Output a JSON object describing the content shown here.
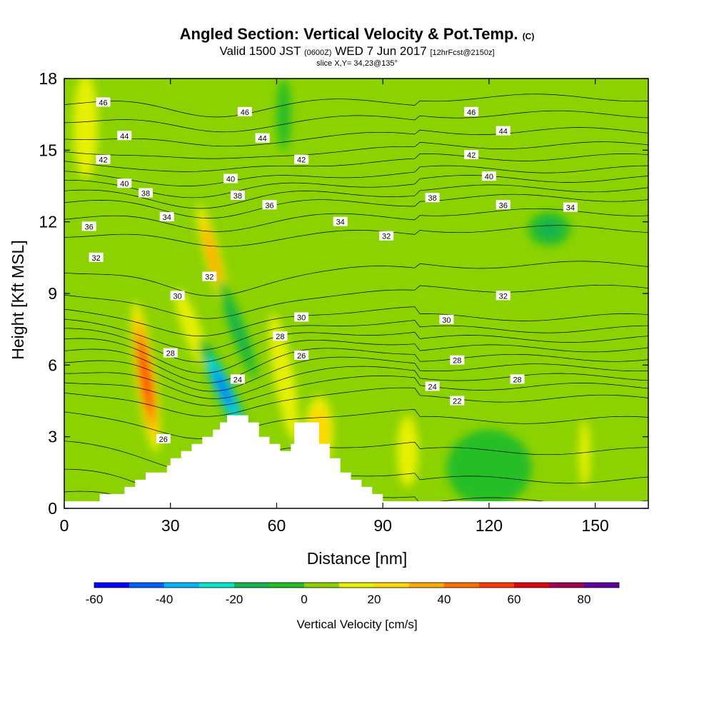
{
  "title": {
    "main": "Angled Section: Vertical Velocity & Pot.Temp.",
    "main_unit": "(C)",
    "valid_a": "Valid 1500 JST",
    "valid_z": "(0600Z)",
    "valid_b": "WED 7 Jun 2017",
    "valid_fcst": "[12hrFcst@2150z]",
    "slice": "slice X,Y= 34,23@135°"
  },
  "chart_data": {
    "type": "heatmap",
    "xlabel": "Distance [nm]",
    "ylabel": "Height [Kft MSL]",
    "xlim": [
      0,
      165
    ],
    "ylim": [
      0,
      18
    ],
    "xticks": [
      0,
      30,
      60,
      90,
      120,
      150
    ],
    "yticks": [
      0,
      3,
      6,
      9,
      12,
      15,
      18
    ],
    "background_value": 5,
    "terrain": [
      [
        10,
        0.3
      ],
      [
        10,
        0.6
      ],
      [
        17,
        0.6
      ],
      [
        17,
        0.9
      ],
      [
        20,
        0.9
      ],
      [
        20,
        1.2
      ],
      [
        23,
        1.2
      ],
      [
        23,
        1.5
      ],
      [
        29,
        1.5
      ],
      [
        29,
        1.8
      ],
      [
        30,
        1.8
      ],
      [
        30,
        2.1
      ],
      [
        33,
        2.1
      ],
      [
        33,
        2.4
      ],
      [
        36,
        2.4
      ],
      [
        36,
        2.7
      ],
      [
        39,
        2.7
      ],
      [
        39,
        3.0
      ],
      [
        42,
        3.0
      ],
      [
        42,
        3.3
      ],
      [
        44,
        3.3
      ],
      [
        44,
        3.6
      ],
      [
        46,
        3.6
      ],
      [
        46,
        3.9
      ],
      [
        52,
        3.9
      ],
      [
        52,
        3.6
      ],
      [
        55,
        3.6
      ],
      [
        55,
        3.0
      ],
      [
        58,
        3.0
      ],
      [
        58,
        2.7
      ],
      [
        61,
        2.7
      ],
      [
        61,
        2.4
      ],
      [
        64,
        2.4
      ],
      [
        64,
        2.7
      ],
      [
        65,
        2.7
      ],
      [
        65,
        3.6
      ],
      [
        72,
        3.6
      ],
      [
        72,
        2.7
      ],
      [
        75,
        2.7
      ],
      [
        75,
        2.1
      ],
      [
        78,
        2.1
      ],
      [
        78,
        1.5
      ],
      [
        81,
        1.5
      ],
      [
        81,
        1.2
      ],
      [
        84,
        1.2
      ],
      [
        84,
        0.9
      ],
      [
        87,
        0.9
      ],
      [
        87,
        0.6
      ],
      [
        90,
        0.6
      ],
      [
        90,
        0.3
      ]
    ],
    "features": [
      {
        "name": "updraft-west",
        "cx": 23,
        "cy": 5.5,
        "rx": 2.8,
        "ry": 3.2,
        "angle": -8,
        "value": 52
      },
      {
        "name": "updraft-upper",
        "cx": 42,
        "cy": 10.5,
        "rx": 2.2,
        "ry": 2.3,
        "angle": -15,
        "value": 30
      },
      {
        "name": "updraft-mid",
        "cx": 36,
        "cy": 7.5,
        "rx": 2.5,
        "ry": 1.8,
        "angle": -20,
        "value": 18
      },
      {
        "name": "downdraft",
        "cx": 45,
        "cy": 5.0,
        "rx": 2.8,
        "ry": 2.3,
        "angle": -25,
        "value": -42
      },
      {
        "name": "downdraft-upper",
        "cx": 49,
        "cy": 7.5,
        "rx": 2.2,
        "ry": 2.2,
        "angle": -20,
        "value": -18
      },
      {
        "name": "updraft-east",
        "cx": 62,
        "cy": 5.5,
        "rx": 2.8,
        "ry": 2.7,
        "angle": -10,
        "value": 17
      },
      {
        "name": "updraft-lee",
        "cx": 72,
        "cy": 3.2,
        "rx": 4,
        "ry": 1.5,
        "angle": 0,
        "value": 20
      },
      {
        "name": "yellow-top-left",
        "cx": 6,
        "cy": 16.0,
        "rx": 3.5,
        "ry": 2.2,
        "angle": 0,
        "value": 12
      },
      {
        "name": "yellow-right",
        "cx": 97,
        "cy": 2.4,
        "rx": 3,
        "ry": 1.5,
        "angle": 0,
        "value": 14
      },
      {
        "name": "yellow-far-right",
        "cx": 147,
        "cy": 2.3,
        "rx": 1.6,
        "ry": 1.4,
        "angle": 0,
        "value": 12
      },
      {
        "name": "sink-right",
        "cx": 120,
        "cy": 1.7,
        "rx": 12,
        "ry": 1.6,
        "angle": 0,
        "value": -4
      },
      {
        "name": "sink-upper-right",
        "cx": 137,
        "cy": 11.7,
        "rx": 6,
        "ry": 0.7,
        "angle": 0,
        "value": -12
      },
      {
        "name": "sink-top",
        "cx": 62,
        "cy": 16.5,
        "rx": 2,
        "ry": 1.5,
        "angle": 0,
        "value": -10
      }
    ],
    "contours": {
      "values": [
        20,
        21,
        22,
        23,
        24,
        25,
        26,
        27,
        28,
        29,
        30,
        31,
        32,
        33,
        34,
        35,
        36,
        37,
        38,
        39,
        40,
        41,
        42,
        43,
        44,
        45,
        46
      ],
      "profile_heights": [
        0.0,
        0.6,
        1.5,
        2.7,
        4.0,
        4.9,
        5.4,
        5.8,
        6.2,
        6.6,
        7.0,
        7.4,
        7.8,
        8.3,
        9.0,
        10.0,
        11.5,
        12.2,
        12.8,
        13.2,
        13.6,
        14.0,
        14.5,
        15.0,
        15.6,
        16.3,
        17.0
      ]
    },
    "contour_labels": [
      {
        "text": "46",
        "x": 11,
        "y": 17.0
      },
      {
        "text": "46",
        "x": 51,
        "y": 16.6
      },
      {
        "text": "46",
        "x": 115,
        "y": 16.6
      },
      {
        "text": "44",
        "x": 17,
        "y": 15.6
      },
      {
        "text": "44",
        "x": 56,
        "y": 15.5
      },
      {
        "text": "44",
        "x": 124,
        "y": 15.8
      },
      {
        "text": "42",
        "x": 11,
        "y": 14.6
      },
      {
        "text": "42",
        "x": 67,
        "y": 14.6
      },
      {
        "text": "42",
        "x": 115,
        "y": 14.8
      },
      {
        "text": "40",
        "x": 17,
        "y": 13.6
      },
      {
        "text": "40",
        "x": 47,
        "y": 13.8
      },
      {
        "text": "40",
        "x": 120,
        "y": 13.9
      },
      {
        "text": "38",
        "x": 23,
        "y": 13.2
      },
      {
        "text": "38",
        "x": 49,
        "y": 13.1
      },
      {
        "text": "38",
        "x": 104,
        "y": 13.0
      },
      {
        "text": "36",
        "x": 7,
        "y": 11.8
      },
      {
        "text": "36",
        "x": 58,
        "y": 12.7
      },
      {
        "text": "36",
        "x": 124,
        "y": 12.7
      },
      {
        "text": "34",
        "x": 29,
        "y": 12.2
      },
      {
        "text": "34",
        "x": 78,
        "y": 12.0
      },
      {
        "text": "34",
        "x": 143,
        "y": 12.6
      },
      {
        "text": "32",
        "x": 9,
        "y": 10.5
      },
      {
        "text": "32",
        "x": 41,
        "y": 9.7
      },
      {
        "text": "32",
        "x": 91,
        "y": 11.4
      },
      {
        "text": "32",
        "x": 124,
        "y": 8.9
      },
      {
        "text": "30",
        "x": 32,
        "y": 8.9
      },
      {
        "text": "30",
        "x": 67,
        "y": 8.0
      },
      {
        "text": "30",
        "x": 108,
        "y": 7.9
      },
      {
        "text": "28",
        "x": 30,
        "y": 6.5
      },
      {
        "text": "28",
        "x": 61,
        "y": 7.2
      },
      {
        "text": "28",
        "x": 111,
        "y": 6.2
      },
      {
        "text": "28",
        "x": 128,
        "y": 5.4
      },
      {
        "text": "26",
        "x": 67,
        "y": 6.4
      },
      {
        "text": "26",
        "x": 28,
        "y": 2.9
      },
      {
        "text": "24",
        "x": 49,
        "y": 5.4
      },
      {
        "text": "24",
        "x": 104,
        "y": 5.1
      },
      {
        "text": "22",
        "x": 111,
        "y": 4.5
      }
    ]
  },
  "colorbar": {
    "label": "Vertical Velocity [cm/s]",
    "tick_labels": [
      "-60",
      "-40",
      "-20",
      "0",
      "20",
      "40",
      "60",
      "80"
    ],
    "tick_values": [
      -60,
      -40,
      -20,
      0,
      20,
      40,
      60,
      80
    ],
    "boundaries": [
      -60,
      -50,
      -40,
      -30,
      -20,
      -10,
      0,
      10,
      20,
      30,
      40,
      50,
      60,
      70,
      80,
      90
    ],
    "colors": [
      "#0000ff",
      "#0060ff",
      "#00b4ff",
      "#00e6c8",
      "#18b450",
      "#26be26",
      "#8cd200",
      "#e6f000",
      "#ffd800",
      "#ffaa00",
      "#ff7000",
      "#ff3800",
      "#e00010",
      "#a00050",
      "#6000a0"
    ]
  }
}
